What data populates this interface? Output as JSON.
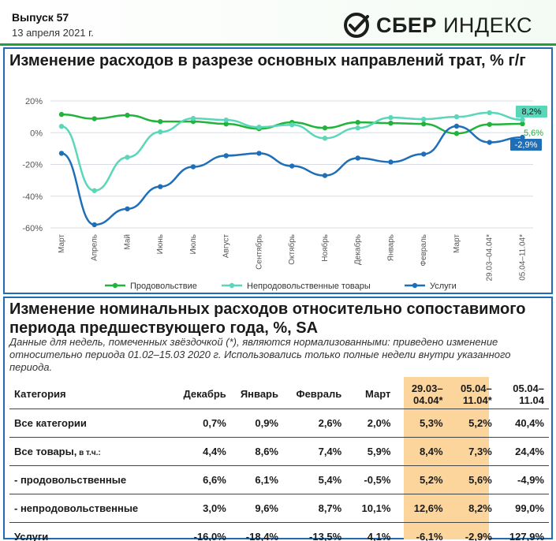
{
  "header": {
    "issue": "Выпуск 57",
    "date": "13 апреля 2021 г.",
    "brand_sber": "СБЕР",
    "brand_index": "ИНДЕКС",
    "logo_icon": "sber-checkmark-icon",
    "accent": "#21a038"
  },
  "chart_section": {
    "title": "Изменение расходов в разрезе основных направлений трат, % г/г"
  },
  "chart_data": {
    "type": "line",
    "categories": [
      "Март",
      "Апрель",
      "Май",
      "Июнь",
      "Июль",
      "Август",
      "Сентябрь",
      "Октябрь",
      "Ноябрь",
      "Декабрь",
      "Январь",
      "Февраль",
      "Март",
      "29.03–04.04*",
      "05.04–11.04*"
    ],
    "ylim": [
      -60,
      20
    ],
    "yticks": [
      20,
      0,
      -20,
      -40,
      -60
    ],
    "ytick_labels": [
      "20%",
      "0%",
      "-20%",
      "-40%",
      "-60%"
    ],
    "grid": true,
    "legend_position": "bottom",
    "series": [
      {
        "name": "Продовольствие",
        "color": "#21b33b",
        "values": [
          11.5,
          8.8,
          11.0,
          7.0,
          7.0,
          5.5,
          2.5,
          6.5,
          3.0,
          6.5,
          6.0,
          5.5,
          -0.5,
          5.2,
          5.6
        ]
      },
      {
        "name": "Непродовольственные товары",
        "color": "#5ad6b8",
        "values": [
          4.0,
          -36.5,
          -15.5,
          0.5,
          9.0,
          8.0,
          3.5,
          5.0,
          -3.5,
          3.0,
          9.5,
          8.5,
          10.0,
          12.6,
          8.2
        ]
      },
      {
        "name": "Услуги",
        "color": "#1f6fb8",
        "values": [
          -13.0,
          -58.0,
          -48.0,
          -34.0,
          -21.5,
          -14.5,
          -13.0,
          -21.0,
          -27.0,
          -16.0,
          -18.5,
          -13.5,
          4.1,
          -6.1,
          -2.9
        ]
      }
    ],
    "end_labels": [
      {
        "text": "8,2%",
        "series": 1,
        "boxed": true
      },
      {
        "text": "5,6%",
        "series": 0,
        "boxed": false
      },
      {
        "text": "-2,9%",
        "series": 2,
        "boxed": true
      }
    ]
  },
  "table_section": {
    "title": "Изменение номинальных расходов относительно сопоставимого периода предшествующего года, %, SA",
    "note": "Данные для недель, помеченных звёздочкой (*), являются нормализованными: приведено изменение относительно периода 01.02–15.03 2020 г. Использовались только полные недели внутри указанного периода.",
    "highlight_color": "#fbd59c",
    "headers": [
      "Категория",
      "Декабрь",
      "Январь",
      "Февраль",
      "Март",
      "29.03–04.04*",
      "05.04–11.04*",
      "05.04–11.04"
    ],
    "rows": [
      {
        "label": "Все категории",
        "sub": "",
        "cells": [
          "0,7%",
          "0,9%",
          "2,6%",
          "2,0%",
          "5,3%",
          "5,2%",
          "40,4%"
        ]
      },
      {
        "label": "Все товары,",
        "sub": "в т.ч.:",
        "cells": [
          "4,4%",
          "8,6%",
          "7,4%",
          "5,9%",
          "8,4%",
          "7,3%",
          "24,4%"
        ]
      },
      {
        "label": "- продовольственные",
        "sub": "",
        "cells": [
          "6,6%",
          "6,1%",
          "5,4%",
          "-0,5%",
          "5,2%",
          "5,6%",
          "-4,9%"
        ]
      },
      {
        "label": "- непродовольственные",
        "sub": "",
        "cells": [
          "3,0%",
          "9,6%",
          "8,7%",
          "10,1%",
          "12,6%",
          "8,2%",
          "99,0%"
        ]
      },
      {
        "label": "Услуги",
        "sub": "",
        "cells": [
          "-16,0%",
          "-18,4%",
          "-13,5%",
          "4,1%",
          "-6,1%",
          "-2,9%",
          "127,9%"
        ]
      }
    ]
  }
}
